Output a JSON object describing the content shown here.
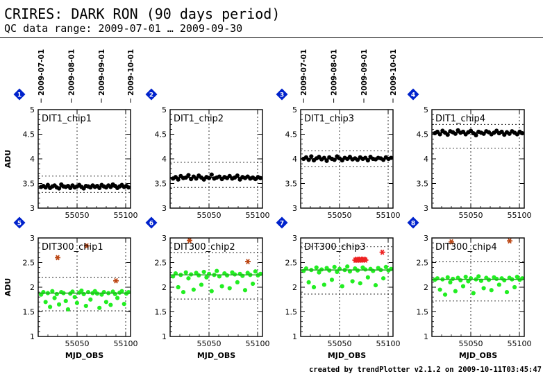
{
  "header": {
    "title": "CRIRES: DARK RON (90 days period)",
    "subtitle": "QC data range: 2009-07-01 … 2009-09-30"
  },
  "footer": "created by trendPlotter v2.1.2 on 2009-10-11T03:45:47",
  "colors": {
    "dark_points": "#000000",
    "long_points": "#22ee22",
    "fit_line": "#22aa22",
    "outlier_marker": "#bb4411",
    "badge": "#0022cc"
  },
  "chart_data": [
    {
      "type": "scatter",
      "badge": "1",
      "title": "DIT1_chip1",
      "ylabel": "ADU",
      "xlabel": "",
      "ylim": [
        3,
        5
      ],
      "yticks": [
        "3",
        "3.5",
        "4",
        "4.5",
        "5"
      ],
      "xticks": [
        "55050",
        "55100"
      ],
      "date_ticks": [
        "2009-07-01",
        "2009-08-01",
        "2009-09-01",
        "2009-10-01"
      ],
      "median": 3.43,
      "band": [
        3.32,
        3.65
      ],
      "series": [
        {
          "values": [
            3.43,
            3.45,
            3.42,
            3.47,
            3.41,
            3.44,
            3.46,
            3.42,
            3.4,
            3.48,
            3.44,
            3.43,
            3.45,
            3.41,
            3.46,
            3.42,
            3.44,
            3.47,
            3.43,
            3.4,
            3.45,
            3.44,
            3.42,
            3.46,
            3.43,
            3.45,
            3.41,
            3.47,
            3.44,
            3.42,
            3.46,
            3.43,
            3.48,
            3.45,
            3.41,
            3.44,
            3.47,
            3.43,
            3.45,
            3.42
          ]
        }
      ],
      "outliers": []
    },
    {
      "type": "scatter",
      "badge": "2",
      "title": "DIT1_chip2",
      "ylabel": "",
      "xlabel": "",
      "ylim": [
        3,
        5
      ],
      "yticks": [
        "3",
        "3.5",
        "4",
        "4.5",
        "5"
      ],
      "xticks": [
        "55050",
        "55100"
      ],
      "date_ticks": [],
      "median": 3.62,
      "band": [
        3.42,
        3.93
      ],
      "series": [
        {
          "values": [
            3.6,
            3.63,
            3.58,
            3.65,
            3.61,
            3.62,
            3.67,
            3.59,
            3.64,
            3.6,
            3.66,
            3.62,
            3.58,
            3.63,
            3.61,
            3.68,
            3.6,
            3.62,
            3.64,
            3.59,
            3.63,
            3.61,
            3.65,
            3.6,
            3.62,
            3.66,
            3.58,
            3.63,
            3.61,
            3.64,
            3.6,
            3.62,
            3.59,
            3.63,
            3.61
          ]
        }
      ],
      "outliers": []
    },
    {
      "type": "scatter",
      "badge": "3",
      "title": "DIT1_chip3",
      "ylabel": "",
      "xlabel": "",
      "ylim": [
        3,
        5
      ],
      "yticks": [
        "3",
        "3.5",
        "4",
        "4.5",
        "5"
      ],
      "xticks": [
        "55050",
        "55100"
      ],
      "date_ticks": [
        "2009-07-01",
        "2009-08-01",
        "2009-09-01",
        "2009-10-01"
      ],
      "median": 4.0,
      "band": [
        3.84,
        4.16
      ],
      "series": [
        {
          "values": [
            4.0,
            4.03,
            3.98,
            4.05,
            3.97,
            4.01,
            4.04,
            3.99,
            4.02,
            3.96,
            4.03,
            4.0,
            3.98,
            4.05,
            4.01,
            3.97,
            4.02,
            4.0,
            4.04,
            3.99,
            4.01,
            3.98,
            4.03,
            4.0,
            4.02,
            3.97,
            4.04,
            4.0,
            3.99,
            4.02,
            4.01,
            3.98,
            4.03,
            4.0,
            4.02
          ]
        }
      ],
      "outliers": []
    },
    {
      "type": "scatter",
      "badge": "4",
      "title": "DIT1_chip4",
      "ylabel": "",
      "xlabel": "",
      "ylim": [
        3,
        5
      ],
      "yticks": [
        "3",
        "3.5",
        "4",
        "4.5",
        "5"
      ],
      "xticks": [
        "55050",
        "55100"
      ],
      "date_ticks": [],
      "median": 4.53,
      "band": [
        4.22,
        4.7
      ],
      "series": [
        {
          "values": [
            4.52,
            4.55,
            4.5,
            4.57,
            4.53,
            4.49,
            4.56,
            4.54,
            4.51,
            4.58,
            4.53,
            4.55,
            4.5,
            4.54,
            4.57,
            4.52,
            4.48,
            4.55,
            4.53,
            4.51,
            4.56,
            4.54,
            4.5,
            4.53,
            4.57,
            4.52,
            4.55,
            4.49,
            4.54,
            4.51,
            4.56,
            4.53,
            4.5,
            4.55,
            4.52
          ]
        }
      ],
      "outliers": []
    },
    {
      "type": "scatter",
      "badge": "5",
      "title": "DIT300_chip1",
      "ylabel": "ADU",
      "xlabel": "MJD_OBS",
      "ylim": [
        1,
        3
      ],
      "yticks": [
        "1",
        "1.5",
        "2",
        "2.5",
        "3"
      ],
      "xticks": [
        "55050",
        "55100"
      ],
      "date_ticks": [],
      "median": 1.88,
      "band": [
        1.52,
        2.2
      ],
      "series": [
        {
          "values": [
            1.85,
            1.9,
            1.7,
            1.88,
            1.6,
            1.92,
            1.78,
            1.86,
            1.65,
            1.9,
            1.88,
            1.72,
            1.55,
            1.87,
            1.91,
            1.8,
            1.68,
            1.89,
            1.93,
            1.86,
            1.62,
            1.9,
            1.75,
            1.88,
            1.92,
            1.87,
            1.58,
            1.85,
            1.9,
            1.7,
            1.88,
            1.64,
            1.91,
            1.86,
            1.78,
            1.89,
            1.92,
            1.66,
            1.87,
            1.9
          ]
        }
      ],
      "outliers": [
        2.6,
        2.84,
        2.13
      ]
    },
    {
      "type": "scatter",
      "badge": "6",
      "title": "DIT300_chip2",
      "ylabel": "",
      "xlabel": "MJD_OBS",
      "ylim": [
        1,
        3
      ],
      "yticks": [
        "1",
        "1.5",
        "2",
        "2.5",
        "3"
      ],
      "xticks": [
        "55050",
        "55100"
      ],
      "date_ticks": [],
      "median": 2.25,
      "band": [
        1.76,
        2.7
      ],
      "series": [
        {
          "values": [
            2.22,
            2.28,
            2.0,
            2.25,
            1.9,
            2.3,
            2.18,
            2.26,
            1.95,
            2.29,
            2.24,
            2.05,
            2.31,
            2.2,
            2.27,
            1.92,
            2.25,
            2.33,
            2.22,
            2.02,
            2.28,
            2.24,
            1.98,
            2.3,
            2.26,
            2.1,
            2.27,
            2.23,
            1.94,
            2.29,
            2.25,
            2.07,
            2.32,
            2.24,
            2.27
          ]
        }
      ],
      "outliers": [
        2.95,
        2.52
      ]
    },
    {
      "type": "scatter",
      "badge": "7",
      "title": "DIT300_chip3",
      "ylabel": "",
      "xlabel": "MJD_OBS",
      "ylim": [
        1,
        3
      ],
      "yticks": [
        "1",
        "1.5",
        "2",
        "2.5",
        "3"
      ],
      "xticks": [
        "55050",
        "55100"
      ],
      "date_ticks": [],
      "median": 2.35,
      "band": [
        1.86,
        2.82
      ],
      "series": [
        {
          "values": [
            2.33,
            2.38,
            2.1,
            2.35,
            2.0,
            2.4,
            2.3,
            2.36,
            2.05,
            2.39,
            2.34,
            2.15,
            2.41,
            2.31,
            2.37,
            2.02,
            2.35,
            2.42,
            2.32,
            2.12,
            2.38,
            2.34,
            2.08,
            2.4,
            2.36,
            2.2,
            2.37,
            2.33,
            2.04,
            2.39,
            2.35,
            2.18,
            2.41,
            2.34,
            2.37
          ]
        }
      ],
      "outliers": [
        2.55,
        2.55,
        2.57,
        2.55,
        2.56,
        2.55,
        2.57,
        2.55,
        2.56,
        2.55,
        2.57,
        2.56,
        2.55,
        2.71
      ]
    },
    {
      "type": "scatter",
      "badge": "8",
      "title": "DIT300_chip4",
      "ylabel": "",
      "xlabel": "MJD_OBS",
      "ylim": [
        1,
        3
      ],
      "yticks": [
        "1",
        "1.5",
        "2",
        "2.5",
        "3"
      ],
      "xticks": [
        "55050",
        "55100"
      ],
      "date_ticks": [],
      "median": 2.16,
      "band": [
        1.72,
        2.52
      ],
      "series": [
        {
          "values": [
            2.15,
            2.18,
            1.95,
            2.16,
            1.85,
            2.2,
            2.1,
            2.17,
            1.92,
            2.19,
            2.14,
            2.02,
            2.21,
            2.12,
            2.18,
            1.88,
            2.16,
            2.22,
            2.13,
            1.98,
            2.19,
            2.15,
            1.94,
            2.2,
            2.17,
            2.05,
            2.18,
            2.14,
            1.9,
            2.19,
            2.16,
            2.0,
            2.21,
            2.15,
            2.18
          ]
        }
      ],
      "outliers": [
        2.92,
        2.94
      ]
    }
  ]
}
